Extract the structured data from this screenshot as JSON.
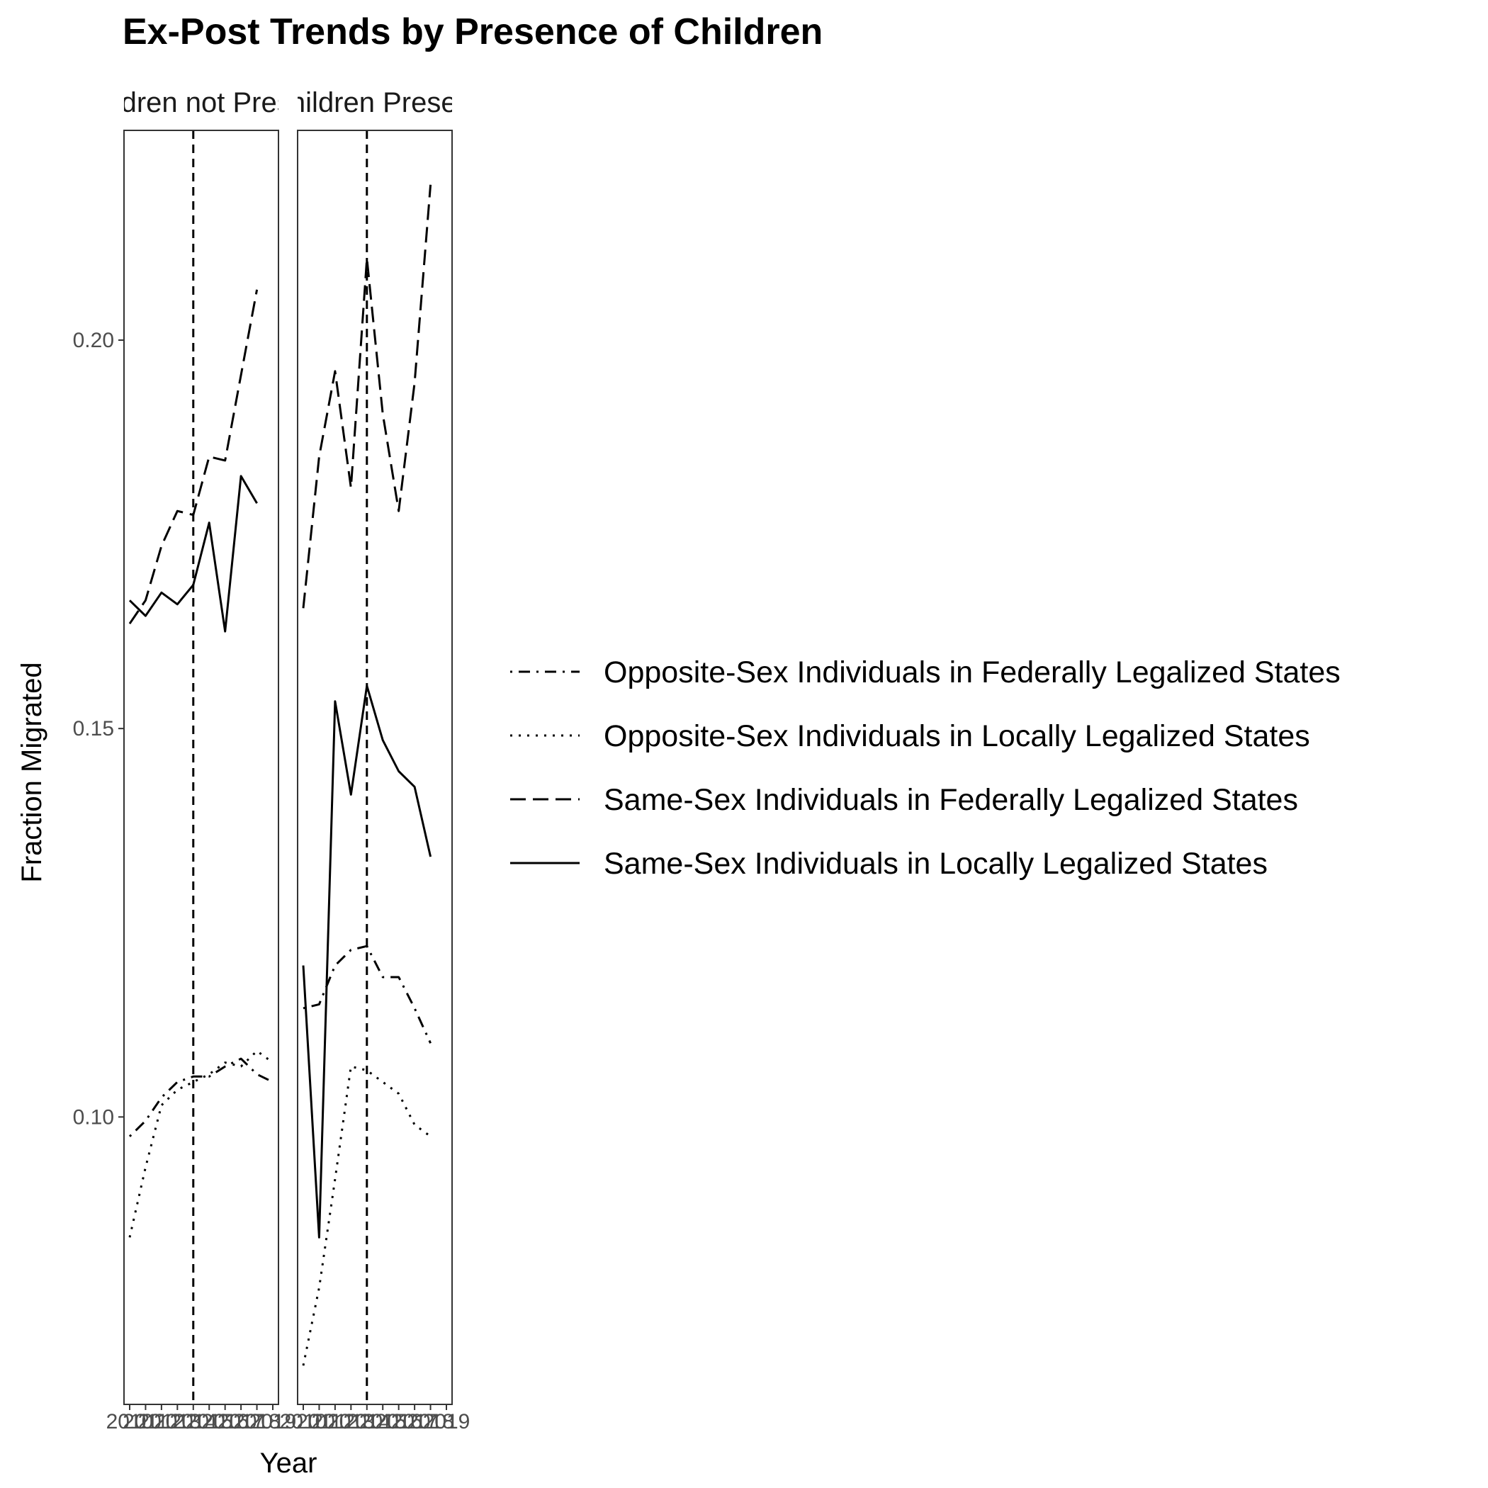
{
  "chart_data": {
    "type": "line",
    "title": "Ex-Post Trends by Presence of Children",
    "xlabel": "Year",
    "ylabel": "Fraction Migrated",
    "ylim": [
      0.063,
      0.227
    ],
    "yticks": [
      0.1,
      0.15,
      0.2
    ],
    "ytick_labels": [
      "0.10",
      "0.15",
      "0.20"
    ],
    "x": [
      2010,
      2011,
      2012,
      2013,
      2014,
      2015,
      2016,
      2017,
      2018,
      2019
    ],
    "xtick_labels": [
      "2010",
      "2011",
      "2012",
      "2013",
      "2014",
      "2015",
      "2016",
      "2017",
      "2018",
      "2019"
    ],
    "event_year": 2014,
    "grid": false,
    "legend_position": "right",
    "line_styles": {
      "opposite_federal": "dot-dash",
      "opposite_local": "dotted",
      "same_federal": "long-dash",
      "same_local": "solid"
    },
    "legend": [
      {
        "key": "opposite_federal",
        "label": "Opposite-Sex Individuals in Federally Legalized States"
      },
      {
        "key": "opposite_local",
        "label": "Opposite-Sex Individuals in Locally Legalized States"
      },
      {
        "key": "same_federal",
        "label": "Same-Sex Individuals in Federally Legalized States"
      },
      {
        "key": "same_local",
        "label": "Same-Sex Individuals in Locally Legalized States"
      }
    ],
    "panels": [
      {
        "strip_label": "Children not Present",
        "series": [
          {
            "key": "opposite_federal",
            "values": [
              0.0975,
              0.0995,
              0.1025,
              0.1045,
              0.1052,
              0.1052,
              0.1065,
              0.1075,
              0.1055,
              0.1045
            ]
          },
          {
            "key": "opposite_local",
            "values": [
              0.0845,
              0.0935,
              0.1015,
              0.1035,
              0.1045,
              0.1055,
              0.107,
              0.1065,
              0.1085,
              0.107
            ]
          },
          {
            "key": "same_federal",
            "values": [
              0.1635,
              0.1665,
              0.1735,
              0.178,
              0.1775,
              0.185,
              0.1845,
              0.1955,
              0.2065,
              null
            ]
          },
          {
            "key": "same_local",
            "values": [
              0.1665,
              0.1645,
              0.1675,
              0.166,
              0.1685,
              0.1765,
              0.1625,
              0.1825,
              0.179,
              null
            ]
          }
        ]
      },
      {
        "strip_label": "Children Present",
        "series": [
          {
            "key": "opposite_federal",
            "values": [
              0.114,
              0.1145,
              0.1195,
              0.1215,
              0.122,
              0.118,
              0.118,
              0.114,
              0.1095,
              null
            ]
          },
          {
            "key": "opposite_local",
            "values": [
              0.068,
              0.078,
              0.092,
              0.1065,
              0.106,
              0.1045,
              0.103,
              0.099,
              0.0975,
              null
            ]
          },
          {
            "key": "same_federal",
            "values": [
              0.1655,
              0.185,
              0.196,
              0.181,
              0.2105,
              0.1905,
              0.178,
              0.1945,
              0.22,
              null
            ]
          },
          {
            "key": "same_local",
            "values": [
              0.1195,
              0.0845,
              0.1535,
              0.1415,
              0.1555,
              0.1485,
              0.1445,
              0.1425,
              0.1335,
              null
            ]
          }
        ]
      }
    ]
  }
}
